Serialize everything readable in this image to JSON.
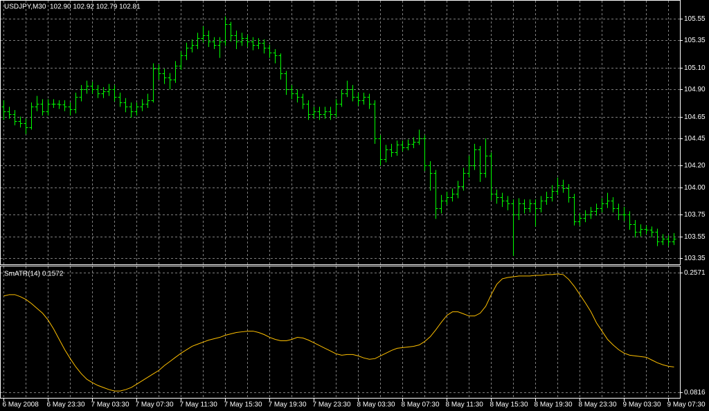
{
  "chart_data": [
    {
      "type": "ohlc",
      "title": "USDJPY,M30",
      "subtitle": "102.90 102.92 102.79 102.81",
      "color": "#00ff00",
      "grid": true,
      "categories": [
        "6 May 2008",
        null,
        null,
        null,
        null,
        null,
        null,
        null,
        "6 May 23:30",
        null,
        null,
        null,
        null,
        null,
        null,
        null,
        "7 May 03:30",
        null,
        null,
        null,
        null,
        null,
        null,
        null,
        "7 May 07:30",
        null,
        null,
        null,
        null,
        null,
        null,
        null,
        "7 May 11:30",
        null,
        null,
        null,
        null,
        null,
        null,
        null,
        "7 May 15:30",
        null,
        null,
        null,
        null,
        null,
        null,
        null,
        "7 May 19:30",
        null,
        null,
        null,
        null,
        null,
        null,
        null,
        "7 May 23:30",
        null,
        null,
        null,
        null,
        null,
        null,
        null,
        "8 May 03:30",
        null,
        null,
        null,
        null,
        null,
        null,
        null,
        "8 May 07:30",
        null,
        null,
        null,
        null,
        null,
        null,
        null,
        "8 May 11:30",
        null,
        null,
        null,
        null,
        null,
        null,
        null,
        "8 May 15:30",
        null,
        null,
        null,
        null,
        null,
        null,
        null,
        "8 May 19:30",
        null,
        null,
        null,
        null,
        null,
        null,
        null,
        "8 May 23:30",
        null,
        null,
        null,
        null,
        null,
        null,
        null,
        "9 May 03:30",
        null,
        null,
        null,
        null,
        null,
        null,
        null,
        "9 May 07:30",
        null
      ],
      "open": [
        104.74,
        104.7,
        104.67,
        104.61,
        104.59,
        104.55,
        104.74,
        104.77,
        104.7,
        104.77,
        104.77,
        104.76,
        104.74,
        104.72,
        104.83,
        104.9,
        104.93,
        104.9,
        104.86,
        104.88,
        104.9,
        104.83,
        104.78,
        104.74,
        104.7,
        104.74,
        104.77,
        104.8,
        105.09,
        105.05,
        105.01,
        104.99,
        105.12,
        105.21,
        105.28,
        105.31,
        105.37,
        105.4,
        105.34,
        105.31,
        105.34,
        105.5,
        105.4,
        105.34,
        105.37,
        105.34,
        105.31,
        105.33,
        105.28,
        105.24,
        105.21,
        105.05,
        104.9,
        104.86,
        104.83,
        104.77,
        104.67,
        104.7,
        104.67,
        104.7,
        104.67,
        104.77,
        104.86,
        104.9,
        104.83,
        104.8,
        104.83,
        104.77,
        104.45,
        104.26,
        104.35,
        104.32,
        104.39,
        104.37,
        104.4,
        104.42,
        104.45,
        104.2,
        104.13,
        103.81,
        103.88,
        103.91,
        103.94,
        104.01,
        104.13,
        104.2,
        104.35,
        104.13,
        104.29,
        103.94,
        103.91,
        103.88,
        103.85,
        103.75,
        103.85,
        103.81,
        103.85,
        103.81,
        103.88,
        103.91,
        103.97,
        104.02,
        103.99,
        103.91,
        103.69,
        103.72,
        103.75,
        103.78,
        103.81,
        103.85,
        103.88,
        103.81,
        103.75,
        103.75,
        103.66,
        103.59,
        103.62,
        103.61,
        103.59,
        103.5,
        103.53,
        103.5
      ],
      "high": [
        104.8,
        104.74,
        104.71,
        104.65,
        104.63,
        104.78,
        104.84,
        104.81,
        104.81,
        104.81,
        104.8,
        104.8,
        104.78,
        104.87,
        104.94,
        104.98,
        104.97,
        104.94,
        104.92,
        104.95,
        104.94,
        104.87,
        104.82,
        104.78,
        104.78,
        104.81,
        104.86,
        105.14,
        105.13,
        105.09,
        105.05,
        105.16,
        105.25,
        105.33,
        105.36,
        105.42,
        105.48,
        105.44,
        105.38,
        105.38,
        105.57,
        105.52,
        105.44,
        105.42,
        105.4,
        105.38,
        105.37,
        105.36,
        105.31,
        105.27,
        105.23,
        105.07,
        104.94,
        104.9,
        104.86,
        104.8,
        104.74,
        104.74,
        104.74,
        104.74,
        104.81,
        104.9,
        104.98,
        104.94,
        104.87,
        104.87,
        104.86,
        104.8,
        104.48,
        104.39,
        104.4,
        104.43,
        104.43,
        104.44,
        104.46,
        104.53,
        104.48,
        104.24,
        104.16,
        103.93,
        103.96,
        103.99,
        104.06,
        104.18,
        104.29,
        104.4,
        104.38,
        104.45,
        104.32,
        103.98,
        103.95,
        103.92,
        103.89,
        103.9,
        103.89,
        103.89,
        103.89,
        103.92,
        103.96,
        104.02,
        104.09,
        104.07,
        104.03,
        103.94,
        103.76,
        103.79,
        103.82,
        103.85,
        103.9,
        103.95,
        103.91,
        103.85,
        103.82,
        103.78,
        103.7,
        103.66,
        103.65,
        103.64,
        103.62,
        103.57,
        103.56,
        103.58
      ],
      "low": [
        104.62,
        104.63,
        104.57,
        104.55,
        104.49,
        104.53,
        104.7,
        104.66,
        104.66,
        104.73,
        104.72,
        104.7,
        104.66,
        104.68,
        104.79,
        104.86,
        104.86,
        104.82,
        104.82,
        104.84,
        104.79,
        104.74,
        104.69,
        104.64,
        104.66,
        104.7,
        104.73,
        104.78,
        104.99,
        104.95,
        104.9,
        104.96,
        105.08,
        105.17,
        105.24,
        105.27,
        105.33,
        105.29,
        105.27,
        105.19,
        105.3,
        105.34,
        105.27,
        105.3,
        105.29,
        105.26,
        105.27,
        105.23,
        105.19,
        105.14,
        104.99,
        104.85,
        104.81,
        104.78,
        104.72,
        104.62,
        104.63,
        104.62,
        104.63,
        104.62,
        104.64,
        104.74,
        104.83,
        104.79,
        104.75,
        104.76,
        104.72,
        104.4,
        104.2,
        104.23,
        104.28,
        104.29,
        104.33,
        104.34,
        104.36,
        104.39,
        104.15,
        103.97,
        103.71,
        103.76,
        103.84,
        103.87,
        103.9,
        103.97,
        104.09,
        104.16,
        104.05,
        104.09,
        103.88,
        103.85,
        103.82,
        103.79,
        103.37,
        103.7,
        103.76,
        103.77,
        103.64,
        103.77,
        103.84,
        103.87,
        103.93,
        103.95,
        103.86,
        103.65,
        103.65,
        103.68,
        103.71,
        103.74,
        103.77,
        103.81,
        103.77,
        103.7,
        103.69,
        103.61,
        103.54,
        103.55,
        103.57,
        103.54,
        103.46,
        103.47,
        103.46,
        103.47
      ],
      "close": [
        104.7,
        104.67,
        104.61,
        104.59,
        104.55,
        104.74,
        104.77,
        104.7,
        104.77,
        104.77,
        104.76,
        104.74,
        104.72,
        104.83,
        104.9,
        104.93,
        104.9,
        104.86,
        104.88,
        104.9,
        104.83,
        104.78,
        104.74,
        104.7,
        104.74,
        104.77,
        104.8,
        105.09,
        105.05,
        105.01,
        104.99,
        105.12,
        105.21,
        105.28,
        105.31,
        105.37,
        105.4,
        105.34,
        105.31,
        105.34,
        105.5,
        105.4,
        105.34,
        105.37,
        105.34,
        105.31,
        105.33,
        105.28,
        105.24,
        105.21,
        105.05,
        104.9,
        104.86,
        104.83,
        104.77,
        104.67,
        104.7,
        104.67,
        104.7,
        104.67,
        104.77,
        104.86,
        104.9,
        104.83,
        104.8,
        104.83,
        104.77,
        104.45,
        104.26,
        104.35,
        104.32,
        104.39,
        104.37,
        104.4,
        104.42,
        104.45,
        104.2,
        104.13,
        103.81,
        103.88,
        103.91,
        103.94,
        104.01,
        104.13,
        104.2,
        104.35,
        104.13,
        104.29,
        103.94,
        103.91,
        103.88,
        103.85,
        103.75,
        103.85,
        103.81,
        103.85,
        103.81,
        103.88,
        103.91,
        103.97,
        104.02,
        103.99,
        103.91,
        103.69,
        103.72,
        103.75,
        103.78,
        103.81,
        103.85,
        103.88,
        103.81,
        103.75,
        103.75,
        103.66,
        103.59,
        103.62,
        103.61,
        103.59,
        103.5,
        103.53,
        103.5,
        103.53
      ],
      "ylim": [
        103.293,
        105.715
      ],
      "yticks": [
        105.55,
        105.35,
        {
          "value": 105.1,
          "label": "105.10"
        },
        {
          "value": 104.9,
          "label": "104.90"
        },
        104.65,
        104.45,
        {
          "value": 104.2,
          "label": "104.20"
        },
        {
          "value": 104,
          "label": "104.00"
        },
        103.75,
        103.55,
        103.35
      ]
    },
    {
      "type": "line",
      "title": "SmATR(14) 0.1572",
      "color": "#ffc000",
      "grid": true,
      "values": [
        0.2228,
        0.2248,
        0.2248,
        0.2218,
        0.2177,
        0.2117,
        0.2046,
        0.1976,
        0.1875,
        0.1744,
        0.1592,
        0.1441,
        0.131,
        0.1189,
        0.1088,
        0.1007,
        0.0957,
        0.0916,
        0.0886,
        0.0856,
        0.0835,
        0.0835,
        0.0856,
        0.0886,
        0.0936,
        0.0987,
        0.1037,
        0.1088,
        0.1138,
        0.1209,
        0.1269,
        0.133,
        0.139,
        0.1441,
        0.1491,
        0.1522,
        0.1552,
        0.1582,
        0.1602,
        0.1622,
        0.1653,
        0.1673,
        0.1693,
        0.1703,
        0.1713,
        0.1713,
        0.1693,
        0.1663,
        0.1622,
        0.1592,
        0.1572,
        0.1572,
        0.1592,
        0.1622,
        0.1612,
        0.1582,
        0.1542,
        0.1501,
        0.1461,
        0.1421,
        0.138,
        0.136,
        0.137,
        0.137,
        0.135,
        0.132,
        0.13,
        0.131,
        0.135,
        0.139,
        0.143,
        0.1461,
        0.1471,
        0.1481,
        0.1491,
        0.1511,
        0.1562,
        0.1632,
        0.1733,
        0.1844,
        0.1945,
        0.1996,
        0.1996,
        0.1966,
        0.1935,
        0.1935,
        0.1976,
        0.2077,
        0.2248,
        0.24,
        0.248,
        0.25,
        0.251,
        0.2521,
        0.2521,
        0.2521,
        0.2531,
        0.2531,
        0.2541,
        0.2541,
        0.2551,
        0.2541,
        0.247,
        0.2369,
        0.2248,
        0.2127,
        0.1996,
        0.1834,
        0.1713,
        0.1592,
        0.1511,
        0.1441,
        0.139,
        0.136,
        0.135,
        0.134,
        0.133,
        0.1289,
        0.1249,
        0.1219,
        0.1198,
        0.1188
      ],
      "ylim": [
        0.0735,
        0.2662
      ],
      "yticks": [
        0.2571,
        0.0816
      ]
    }
  ]
}
